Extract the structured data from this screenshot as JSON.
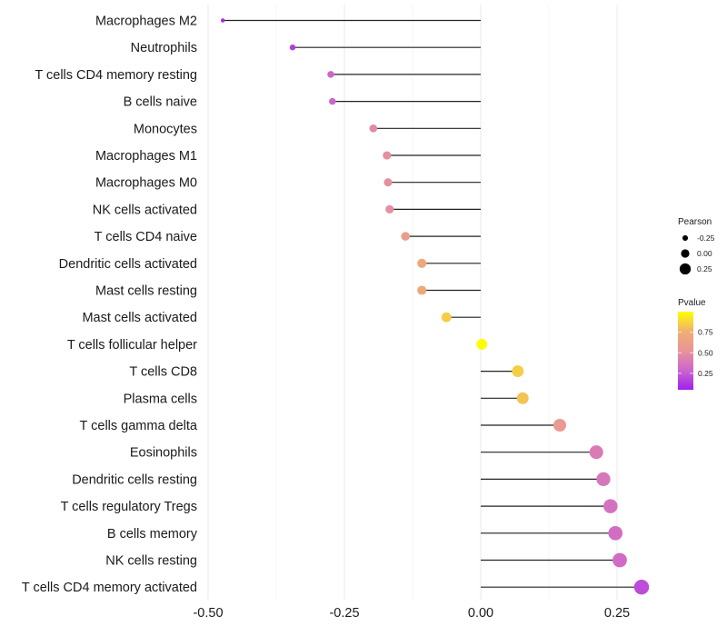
{
  "chart_data": {
    "type": "scatter",
    "subtype": "lollipop",
    "title": "",
    "xlabel": "",
    "ylabel": "",
    "xlim": [
      -0.5,
      0.32
    ],
    "x_ticks": [
      -0.5,
      -0.25,
      0.0,
      0.25
    ],
    "x_tick_labels": [
      "-0.50",
      "-0.25",
      "0.00",
      "0.25"
    ],
    "grid": true,
    "categories": [
      "Macrophages M2",
      "Neutrophils",
      "T cells CD4 memory resting",
      "B cells naive",
      "Monocytes",
      "Macrophages M1",
      "Macrophages M0",
      "NK cells activated",
      "T cells CD4 naive",
      "Dendritic cells activated",
      "Mast cells resting",
      "Mast cells activated",
      "T cells follicular helper",
      "T cells CD8",
      "Plasma cells",
      "T cells gamma delta",
      "Eosinophils",
      "Dendritic cells resting",
      "T cells regulatory  Tregs ",
      "B cells memory",
      "NK cells resting",
      "T cells CD4 memory activated"
    ],
    "series": [
      {
        "name": "Pearson",
        "values": [
          -0.473,
          -0.345,
          -0.275,
          -0.272,
          -0.197,
          -0.172,
          -0.17,
          -0.167,
          -0.138,
          -0.108,
          -0.108,
          -0.063,
          0.002,
          0.068,
          0.077,
          0.145,
          0.212,
          0.225,
          0.238,
          0.247,
          0.255,
          0.295
        ]
      },
      {
        "name": "Pvalue",
        "values": [
          0.08,
          0.15,
          0.29,
          0.29,
          0.48,
          0.5,
          0.5,
          0.5,
          0.6,
          0.7,
          0.7,
          0.85,
          0.99,
          0.85,
          0.82,
          0.58,
          0.4,
          0.37,
          0.35,
          0.33,
          0.32,
          0.2
        ]
      }
    ],
    "legends": {
      "size": {
        "title": "Pearson",
        "entries": [
          {
            "label": "-0.25",
            "value": -0.25
          },
          {
            "label": "0.00",
            "value": 0.0
          },
          {
            "label": "0.25",
            "value": 0.25
          }
        ],
        "placement": "right"
      },
      "color": {
        "title": "Pvalue",
        "range": [
          0.05,
          1.0
        ],
        "ticks": [
          0.25,
          0.5,
          0.75
        ],
        "tick_labels": [
          "0.25",
          "0.50",
          "0.75"
        ],
        "colors": [
          "#a020f0",
          "#cc66cc",
          "#e8949a",
          "#f0b070",
          "#ffff00"
        ],
        "placement": "right"
      }
    }
  }
}
